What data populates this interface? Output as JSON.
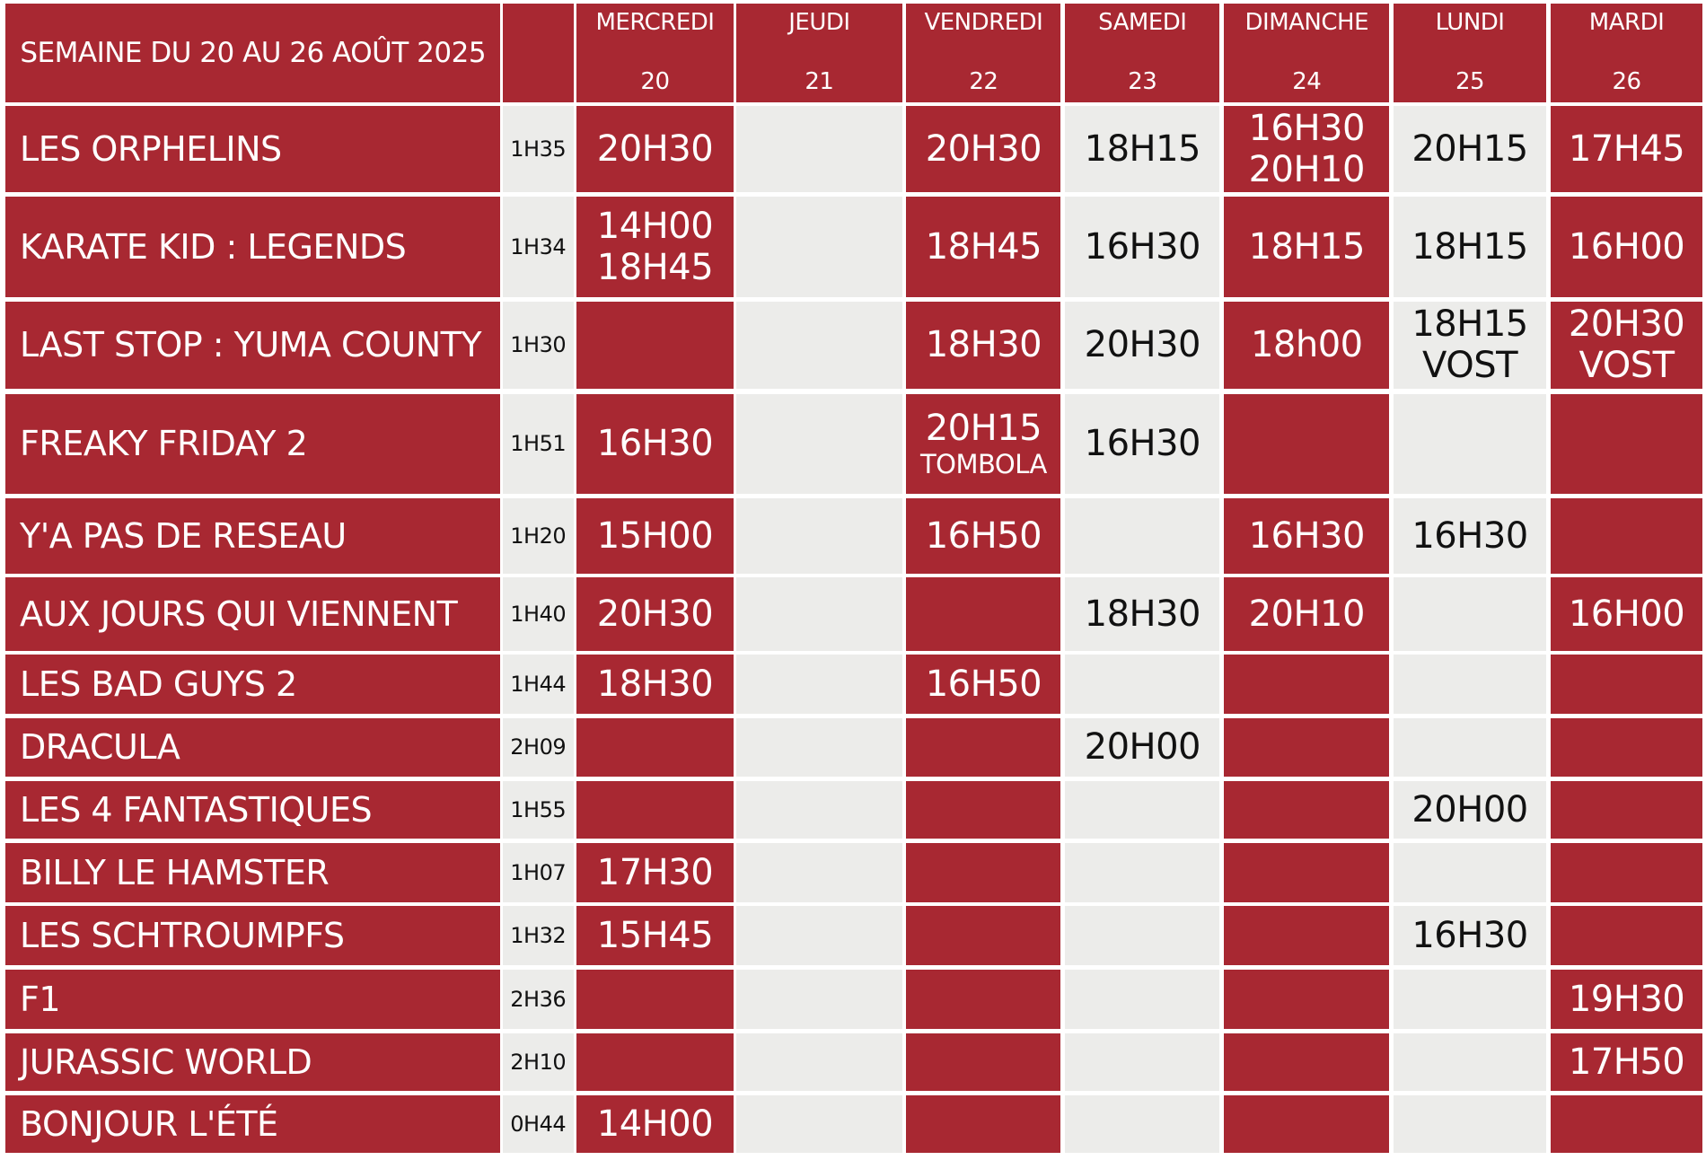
{
  "header": {
    "week_label": "SEMAINE DU 20 AU 26 AOÛT 2025"
  },
  "days": [
    {
      "name": "MERCREDI",
      "date": "20"
    },
    {
      "name": "JEUDI",
      "date": "21"
    },
    {
      "name": "VENDREDI",
      "date": "22"
    },
    {
      "name": "SAMEDI",
      "date": "23"
    },
    {
      "name": "DIMANCHE",
      "date": "24"
    },
    {
      "name": "LUNDI",
      "date": "25"
    },
    {
      "name": "MARDI",
      "date": "26"
    }
  ],
  "films": [
    {
      "title": "LES ORPHELINS",
      "duration": "1H35",
      "showtimes": [
        [
          "20H30"
        ],
        [],
        [
          "20H30"
        ],
        [
          "18H15"
        ],
        [
          "16H30",
          "20H10"
        ],
        [
          "20H15"
        ],
        [
          "17H45"
        ]
      ]
    },
    {
      "title": "KARATE KID : LEGENDS",
      "duration": "1H34",
      "showtimes": [
        [
          "14H00",
          "18H45"
        ],
        [],
        [
          "18H45"
        ],
        [
          "16H30"
        ],
        [
          "18H15"
        ],
        [
          "18H15"
        ],
        [
          "16H00"
        ]
      ]
    },
    {
      "title": "LAST STOP : YUMA COUNTY",
      "duration": "1H30",
      "showtimes": [
        [],
        [],
        [
          "18H30"
        ],
        [
          "20H30"
        ],
        [
          "18h00"
        ],
        [
          "18H15",
          "VOST"
        ],
        [
          "20H30",
          "VOST"
        ]
      ]
    },
    {
      "title": "FREAKY FRIDAY 2",
      "duration": "1H51",
      "showtimes": [
        [
          "16H30"
        ],
        [],
        [
          "20H15",
          "TOMBOLA"
        ],
        [
          "16H30"
        ],
        [],
        [],
        []
      ]
    },
    {
      "title": "Y'A PAS DE RESEAU",
      "duration": "1H20",
      "showtimes": [
        [
          "15H00"
        ],
        [],
        [
          "16H50"
        ],
        [],
        [
          "16H30"
        ],
        [
          "16H30"
        ],
        []
      ]
    },
    {
      "title": "AUX JOURS QUI VIENNENT",
      "duration": "1H40",
      "showtimes": [
        [
          "20H30"
        ],
        [],
        [],
        [
          "18H30"
        ],
        [
          "20H10"
        ],
        [],
        [
          "16H00"
        ]
      ]
    },
    {
      "title": "LES BAD GUYS 2",
      "duration": "1H44",
      "showtimes": [
        [
          "18H30"
        ],
        [],
        [
          "16H50"
        ],
        [],
        [],
        [],
        []
      ]
    },
    {
      "title": "DRACULA",
      "duration": "2H09",
      "showtimes": [
        [],
        [],
        [],
        [
          "20H00"
        ],
        [],
        [],
        []
      ]
    },
    {
      "title": "LES 4 FANTASTIQUES",
      "duration": "1H55",
      "showtimes": [
        [],
        [],
        [],
        [],
        [],
        [
          "20H00"
        ],
        []
      ]
    },
    {
      "title": "BILLY LE HAMSTER",
      "duration": "1H07",
      "showtimes": [
        [
          "17H30"
        ],
        [],
        [],
        [],
        [],
        [],
        []
      ]
    },
    {
      "title": "LES SCHTROUMPFS",
      "duration": "1H32",
      "showtimes": [
        [
          "15H45"
        ],
        [],
        [],
        [],
        [],
        [
          "16H30"
        ],
        []
      ]
    },
    {
      "title": "F1",
      "duration": "2H36",
      "showtimes": [
        [],
        [],
        [],
        [],
        [],
        [],
        [
          "19H30"
        ]
      ]
    },
    {
      "title": "JURASSIC WORLD",
      "duration": "2H10",
      "showtimes": [
        [],
        [],
        [],
        [],
        [],
        [],
        [
          "17H50"
        ]
      ]
    },
    {
      "title": "BONJOUR L'ÉTÉ",
      "duration": "0H44",
      "showtimes": [
        [
          "14H00"
        ],
        [],
        [],
        [],
        [],
        [],
        []
      ]
    }
  ],
  "colors": {
    "red": "#a82832",
    "grey": "#ececea",
    "white": "#ffffff",
    "dark_text": "#111111"
  }
}
